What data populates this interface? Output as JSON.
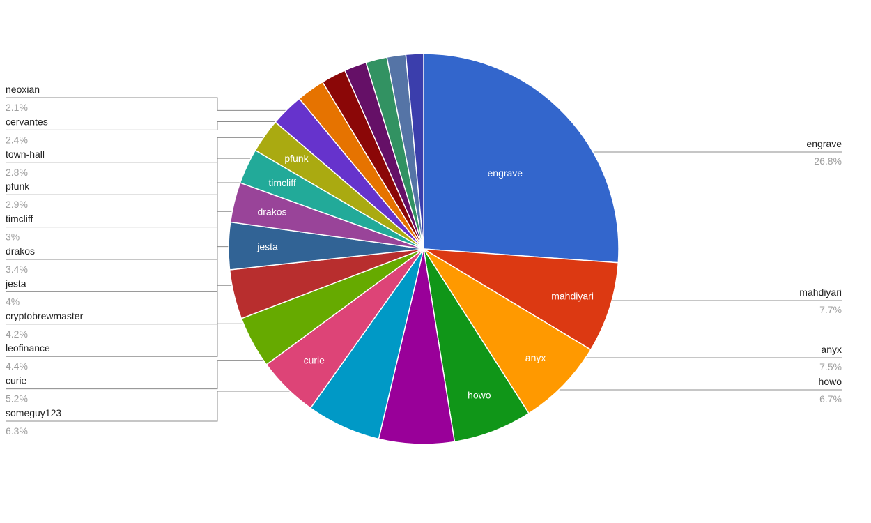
{
  "chart_data": {
    "type": "pie",
    "slices": [
      {
        "label": "engrave",
        "value": 26.8,
        "value_label": "26.8%",
        "color": "#3366cc",
        "inside": true,
        "side": "right"
      },
      {
        "label": "mahdiyari",
        "value": 7.7,
        "value_label": "7.7%",
        "color": "#dc3912",
        "inside": true,
        "side": "right"
      },
      {
        "label": "anyx",
        "value": 7.5,
        "value_label": "7.5%",
        "color": "#ff9900",
        "inside": true,
        "side": "right"
      },
      {
        "label": "howo",
        "value": 6.7,
        "value_label": "6.7%",
        "color": "#109618",
        "inside": true,
        "side": "right"
      },
      {
        "label": "",
        "value": 6.4,
        "color": "#990099",
        "inside": false,
        "side": "none"
      },
      {
        "label": "someguy123",
        "value": 6.3,
        "value_label": "6.3%",
        "color": "#0099c6",
        "inside": false,
        "side": "left"
      },
      {
        "label": "curie",
        "value": 5.2,
        "value_label": "5.2%",
        "color": "#dd4477",
        "inside": true,
        "side": "left"
      },
      {
        "label": "leofinance",
        "value": 4.4,
        "value_label": "4.4%",
        "color": "#66aa00",
        "inside": false,
        "side": "left"
      },
      {
        "label": "cryptobrewmaster",
        "value": 4.2,
        "value_label": "4.2%",
        "color": "#b82e2e",
        "inside": false,
        "side": "left"
      },
      {
        "label": "jesta",
        "value": 4.0,
        "value_label": "4%",
        "color": "#316395",
        "inside": true,
        "side": "left"
      },
      {
        "label": "drakos",
        "value": 3.4,
        "value_label": "3.4%",
        "color": "#994499",
        "inside": true,
        "side": "left"
      },
      {
        "label": "timcliff",
        "value": 3.0,
        "value_label": "3%",
        "color": "#22aa99",
        "inside": true,
        "side": "left"
      },
      {
        "label": "pfunk",
        "value": 2.9,
        "value_label": "2.9%",
        "color": "#aaaa11",
        "inside": true,
        "side": "left"
      },
      {
        "label": "town-hall",
        "value": 2.8,
        "value_label": "2.8%",
        "color": "#6633cc",
        "inside": false,
        "side": "left"
      },
      {
        "label": "cervantes",
        "value": 2.4,
        "value_label": "2.4%",
        "color": "#e67300",
        "inside": false,
        "side": "left"
      },
      {
        "label": "neoxian",
        "value": 2.1,
        "value_label": "2.1%",
        "color": "#8b0707",
        "inside": false,
        "side": "left"
      },
      {
        "label": "",
        "value": 1.9,
        "color": "#651067",
        "inside": false,
        "side": "none"
      },
      {
        "label": "",
        "value": 1.8,
        "color": "#329262",
        "inside": false,
        "side": "none"
      },
      {
        "label": "",
        "value": 1.6,
        "color": "#5574a6",
        "inside": false,
        "side": "none"
      },
      {
        "label": "",
        "value": 1.5,
        "color": "#3b3eac",
        "inside": false,
        "side": "none"
      }
    ]
  }
}
